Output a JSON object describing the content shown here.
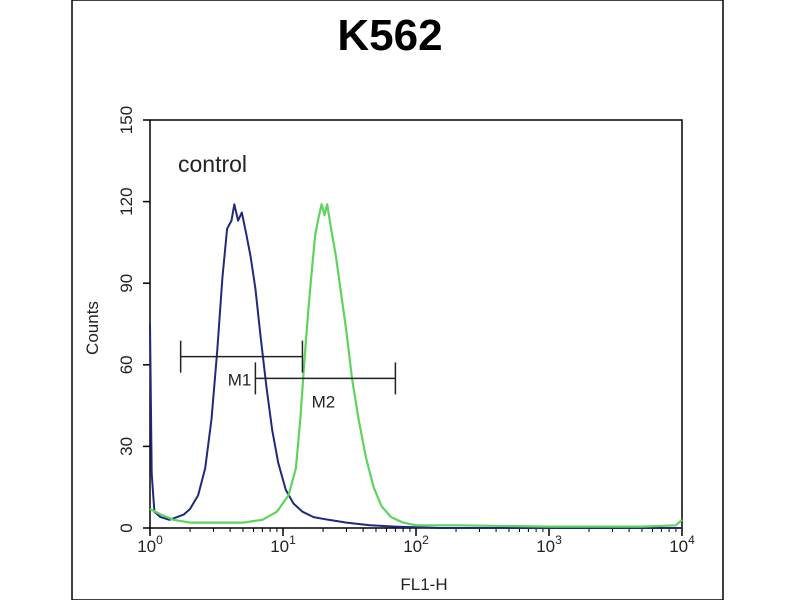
{
  "chart_data": {
    "type": "line",
    "title": "K562",
    "xlabel": "FL1-H",
    "ylabel": "Counts",
    "x_scale": "log",
    "xlim": [
      1,
      10000
    ],
    "ylim": [
      0,
      150
    ],
    "x_ticks": [
      {
        "value": 1,
        "base": "10",
        "exp": "0"
      },
      {
        "value": 10,
        "base": "10",
        "exp": "1"
      },
      {
        "value": 100,
        "base": "10",
        "exp": "2"
      },
      {
        "value": 1000,
        "base": "10",
        "exp": "3"
      },
      {
        "value": 10000,
        "base": "10",
        "exp": "4"
      }
    ],
    "y_ticks": [
      "0",
      "30",
      "60",
      "90",
      "120",
      "150"
    ],
    "y_tick_values": [
      0,
      30,
      60,
      90,
      120,
      150
    ],
    "annotation": "control",
    "grid": false,
    "series": [
      {
        "color": "#1f2a7a",
        "points": [
          [
            1.0,
            75
          ],
          [
            1.03,
            20
          ],
          [
            1.08,
            6
          ],
          [
            1.2,
            4
          ],
          [
            1.4,
            3
          ],
          [
            1.6,
            4
          ],
          [
            1.8,
            5
          ],
          [
            2.0,
            7
          ],
          [
            2.3,
            12
          ],
          [
            2.6,
            22
          ],
          [
            2.9,
            40
          ],
          [
            3.2,
            65
          ],
          [
            3.5,
            92
          ],
          [
            3.8,
            110
          ],
          [
            4.1,
            113
          ],
          [
            4.3,
            119
          ],
          [
            4.6,
            113
          ],
          [
            4.9,
            116
          ],
          [
            5.3,
            108
          ],
          [
            5.7,
            100
          ],
          [
            6.2,
            88
          ],
          [
            6.8,
            70
          ],
          [
            7.5,
            52
          ],
          [
            8.3,
            36
          ],
          [
            9.2,
            24
          ],
          [
            10.5,
            14
          ],
          [
            12,
            9
          ],
          [
            14,
            6
          ],
          [
            17,
            4
          ],
          [
            22,
            3
          ],
          [
            30,
            2
          ],
          [
            45,
            1
          ],
          [
            70,
            0.5
          ],
          [
            150,
            0
          ],
          [
            10000,
            0
          ]
        ]
      },
      {
        "color": "#5fd35f",
        "points": [
          [
            1.0,
            7
          ],
          [
            1.2,
            5
          ],
          [
            1.5,
            3
          ],
          [
            2,
            2
          ],
          [
            3,
            2
          ],
          [
            5,
            2
          ],
          [
            7,
            3
          ],
          [
            9,
            6
          ],
          [
            11,
            12
          ],
          [
            12.5,
            22
          ],
          [
            13.5,
            40
          ],
          [
            14.5,
            62
          ],
          [
            15.5,
            80
          ],
          [
            16.5,
            95
          ],
          [
            17.5,
            108
          ],
          [
            18.5,
            114
          ],
          [
            19.5,
            119
          ],
          [
            20.5,
            115
          ],
          [
            21.5,
            119
          ],
          [
            23,
            110
          ],
          [
            25,
            100
          ],
          [
            27,
            88
          ],
          [
            30,
            72
          ],
          [
            33,
            55
          ],
          [
            37,
            40
          ],
          [
            42,
            26
          ],
          [
            48,
            15
          ],
          [
            55,
            8
          ],
          [
            65,
            4
          ],
          [
            80,
            2
          ],
          [
            100,
            1
          ],
          [
            200,
            1
          ],
          [
            1000,
            0.5
          ],
          [
            5000,
            0.5
          ],
          [
            9000,
            1
          ],
          [
            10000,
            3
          ]
        ]
      }
    ],
    "markers": [
      {
        "label": "M1",
        "x_start": 1.7,
        "x_end": 14,
        "y": 63
      },
      {
        "label": "M2",
        "x_start": 6.2,
        "x_end": 70,
        "y": 55
      }
    ]
  }
}
